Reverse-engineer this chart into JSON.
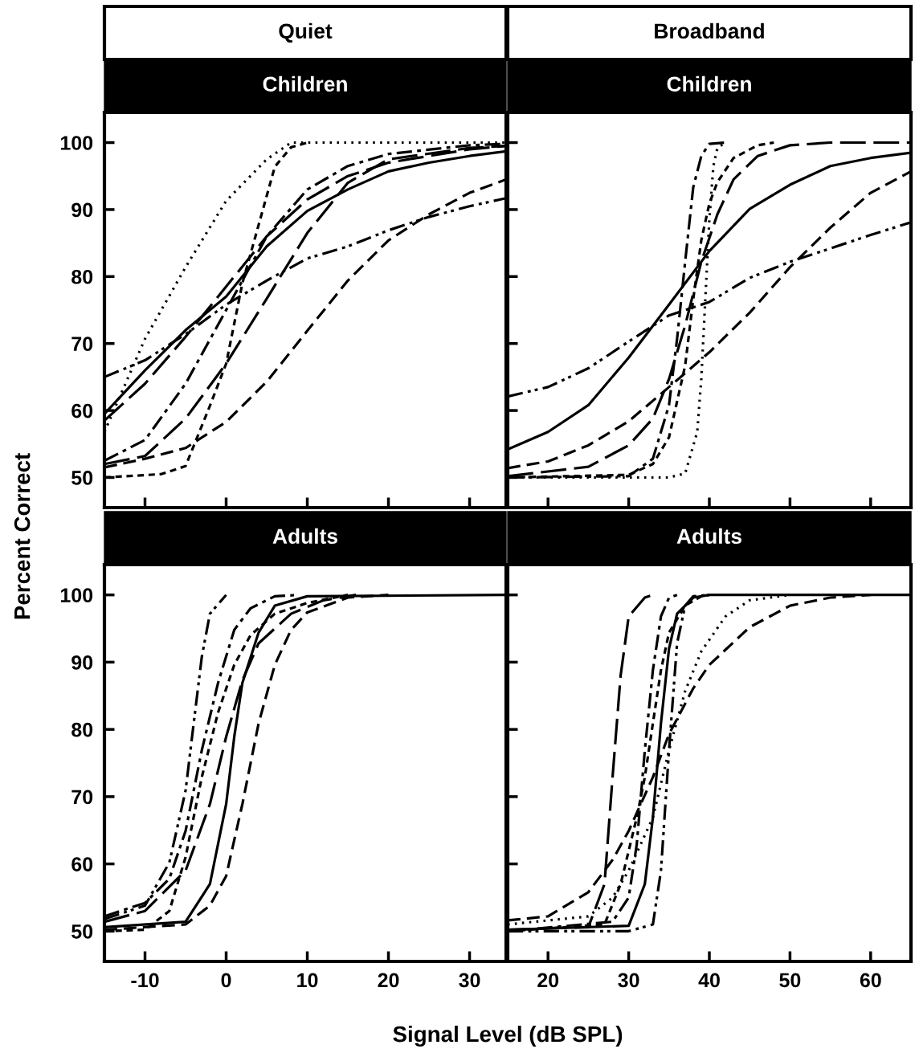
{
  "chart_data": [
    {
      "type": "line",
      "title": "Children",
      "subtitle": "Quiet",
      "ylabel": "Percent Correct",
      "xlim": [
        -15,
        34.5
      ],
      "ylim": [
        45.5,
        104.5
      ],
      "xticks": [
        -10,
        0,
        10,
        20,
        30
      ],
      "yticks": [
        50,
        60,
        70,
        80,
        90,
        100
      ],
      "tick_labels": "y",
      "series": [
        {
          "color": "#000000",
          "line_style": "dashdotdot",
          "x": [
            -15,
            -10,
            -5,
            0,
            5,
            10,
            15,
            20,
            25,
            30,
            34.5
          ],
          "values": [
            65,
            67.5,
            71.4,
            75.8,
            79.4,
            82.7,
            84.5,
            86.9,
            88.9,
            90.5,
            91.7
          ]
        },
        {
          "color": "#000000",
          "line_style": "solid",
          "x": [
            -15,
            -10,
            -5,
            0,
            5,
            10,
            15,
            20,
            25,
            30,
            34.5
          ],
          "values": [
            59.5,
            66,
            72,
            77,
            84.5,
            89.8,
            93,
            95.7,
            97,
            98,
            98.7
          ]
        },
        {
          "color": "#000000",
          "line_style": "longdash",
          "x": [
            -15,
            -10,
            -5,
            0,
            5,
            10,
            15,
            20,
            30,
            34.5
          ],
          "values": [
            58.5,
            64,
            71,
            78.5,
            86,
            91.5,
            95,
            97,
            99,
            99.5
          ]
        },
        {
          "color": "#000000",
          "line_style": "dotted",
          "x": [
            -15,
            -10,
            -5,
            0,
            5,
            8,
            34.5
          ],
          "values": [
            56.8,
            70.7,
            81.4,
            91.3,
            97.5,
            100,
            100
          ]
        },
        {
          "color": "#000000",
          "line_style": "dashdot",
          "x": [
            -15,
            -10,
            -5,
            0,
            5,
            10,
            15,
            20,
            30,
            34.5
          ],
          "values": [
            52.5,
            55.6,
            64,
            75,
            86,
            93,
            96.5,
            98.3,
            99.6,
            99.8
          ]
        },
        {
          "color": "#000000",
          "line_style": "longdash",
          "x": [
            -15,
            -10,
            -5,
            0,
            5,
            10,
            15,
            20,
            30,
            34.5
          ],
          "values": [
            52,
            53.2,
            58.8,
            67,
            76.7,
            86.5,
            94,
            97.5,
            99.2,
            99.5
          ]
        },
        {
          "color": "#000000",
          "line_style": "dashed",
          "x": [
            -15,
            -10,
            -5,
            0,
            5,
            10,
            15,
            20,
            25,
            30,
            34.5
          ],
          "values": [
            51.5,
            52.8,
            54.4,
            58.3,
            64.3,
            71.9,
            79.4,
            85.4,
            89.3,
            92.5,
            94.5
          ]
        },
        {
          "color": "#000000",
          "line_style": "shortdash",
          "x": [
            -15,
            -8,
            -5,
            -2,
            0,
            2,
            4,
            6,
            8,
            10
          ],
          "values": [
            50,
            50.5,
            51.7,
            60.7,
            67,
            79,
            87.7,
            96.4,
            99.3,
            100
          ]
        }
      ]
    },
    {
      "type": "line",
      "title": "Children",
      "subtitle": "Broadband",
      "xlim": [
        15,
        65
      ],
      "ylim": [
        45.5,
        104.5
      ],
      "xticks": [
        20,
        30,
        40,
        50,
        60
      ],
      "yticks": [
        50,
        60,
        70,
        80,
        90,
        100
      ],
      "tick_labels": false,
      "series": [
        {
          "color": "#000000",
          "line_style": "solid",
          "x": [
            15,
            20,
            25,
            30,
            35,
            40,
            45,
            50,
            55,
            60,
            65
          ],
          "values": [
            54.2,
            56.8,
            60.8,
            67.9,
            75.8,
            83.8,
            90.1,
            93.7,
            96.5,
            97.7,
            98.5
          ]
        },
        {
          "color": "#000000",
          "line_style": "dashdotdot",
          "x": [
            15,
            20,
            25,
            30,
            35,
            40,
            45,
            50,
            55,
            60,
            65
          ],
          "values": [
            62.1,
            63.5,
            66.3,
            70.3,
            74.2,
            76.2,
            79.8,
            82.2,
            84.2,
            86.2,
            88.1
          ]
        },
        {
          "color": "#000000",
          "line_style": "dashed",
          "x": [
            15,
            20,
            25,
            30,
            35,
            40,
            45,
            50,
            55,
            60,
            65
          ],
          "values": [
            51.4,
            52.4,
            54.8,
            58.4,
            63.5,
            68.7,
            74.6,
            81.4,
            87.3,
            92.5,
            95.7
          ]
        },
        {
          "color": "#000000",
          "line_style": "longdash",
          "x": [
            15,
            25,
            30,
            33,
            35,
            37,
            39,
            41,
            43,
            46,
            50,
            55,
            65
          ],
          "values": [
            50.2,
            51.6,
            54.8,
            58.8,
            64.7,
            72.7,
            82.2,
            89.3,
            94.5,
            98,
            99.6,
            100,
            100
          ]
        },
        {
          "color": "#000000",
          "line_style": "dashdot",
          "x": [
            15,
            30,
            33,
            35,
            36,
            37,
            38,
            39,
            40,
            42
          ],
          "values": [
            50,
            50.2,
            52.8,
            60.8,
            70.7,
            82.2,
            93.3,
            98,
            99.8,
            100
          ]
        },
        {
          "color": "#000000",
          "line_style": "shortdash",
          "x": [
            15,
            30,
            33,
            35,
            37,
            38,
            39,
            40,
            41,
            43,
            46,
            48
          ],
          "values": [
            50,
            50.4,
            52,
            56,
            66.7,
            76.6,
            85.4,
            90.9,
            94.1,
            97.7,
            99.6,
            100
          ]
        },
        {
          "color": "#000000",
          "line_style": "dotted",
          "x": [
            15,
            35,
            37,
            38.5,
            39,
            39.5,
            40,
            40.5,
            41,
            42
          ],
          "values": [
            50,
            50,
            50.6,
            56.8,
            64.7,
            76.6,
            88.5,
            96.5,
            99.2,
            100
          ]
        }
      ]
    },
    {
      "type": "line",
      "title": "Adults",
      "xlabel": "Signal Level (dB SPL)",
      "xlim": [
        -15,
        34.5
      ],
      "ylim": [
        45.5,
        104.5
      ],
      "xticks": [
        -10,
        0,
        10,
        20,
        30
      ],
      "yticks": [
        50,
        60,
        70,
        80,
        90,
        100
      ],
      "series": [
        {
          "color": "#000000",
          "line_style": "solid",
          "x": [
            -15,
            -5,
            -2,
            0,
            1,
            2,
            4,
            6,
            10,
            34.5
          ],
          "values": [
            50.6,
            51.4,
            57,
            68.9,
            78.9,
            86.9,
            94.4,
            98.4,
            99.8,
            100
          ]
        },
        {
          "color": "#000000",
          "line_style": "dashed",
          "x": [
            -15,
            -5,
            -2,
            0,
            2,
            4,
            6,
            8,
            10,
            15,
            20
          ],
          "values": [
            50.2,
            51,
            53.8,
            58.2,
            68.9,
            80.9,
            89.6,
            94.8,
            97.4,
            99.6,
            100
          ]
        },
        {
          "color": "#000000",
          "line_style": "dashdotdot",
          "x": [
            -15,
            -10,
            -7,
            -5,
            -4,
            -3,
            -2,
            0
          ],
          "values": [
            51.8,
            53.8,
            60.2,
            70.9,
            80.9,
            90.8,
            97.2,
            100
          ]
        },
        {
          "color": "#000000",
          "line_style": "dashdot",
          "x": [
            -15,
            -10,
            -7,
            -5,
            -3,
            -1,
            1,
            3,
            6,
            9
          ],
          "values": [
            52.2,
            54.2,
            57.8,
            64.9,
            76.9,
            86.9,
            94.8,
            98,
            99.8,
            100
          ]
        },
        {
          "color": "#000000",
          "line_style": "longdash",
          "x": [
            -15,
            -10,
            -5,
            -2,
            0,
            2,
            4,
            8,
            12,
            16
          ],
          "values": [
            51.4,
            53,
            59,
            68.9,
            78.9,
            87.3,
            92.8,
            97.2,
            99.2,
            100
          ]
        },
        {
          "color": "#000000",
          "line_style": "shortdash",
          "x": [
            -15,
            -10,
            -7,
            -5,
            -3,
            -1,
            1,
            3,
            6,
            10,
            15
          ],
          "values": [
            50,
            50.2,
            53,
            61,
            72.9,
            82.5,
            89.6,
            94,
            97.2,
            98.8,
            100
          ]
        }
      ]
    },
    {
      "type": "line",
      "title": "Adults",
      "xlim": [
        15,
        65
      ],
      "ylim": [
        45.5,
        104.5
      ],
      "xticks": [
        20,
        30,
        40,
        50,
        60
      ],
      "yticks": [
        50,
        60,
        70,
        80,
        90,
        100
      ],
      "tick_labels": "x",
      "series": [
        {
          "color": "#000000",
          "line_style": "dashed",
          "x": [
            15,
            20,
            25,
            28,
            30,
            33,
            35,
            38,
            40,
            45,
            50,
            55,
            60
          ],
          "values": [
            51.6,
            52.2,
            55.8,
            60.6,
            64.9,
            72.9,
            79.3,
            86.1,
            89.6,
            95.2,
            98.4,
            99.6,
            100
          ]
        },
        {
          "color": "#000000",
          "line_style": "longdash",
          "x": [
            15,
            25,
            27,
            28,
            29,
            30,
            32,
            33
          ],
          "values": [
            50.2,
            50.6,
            57,
            72.9,
            88,
            96.8,
            99.6,
            100
          ]
        },
        {
          "color": "#000000",
          "line_style": "dotted",
          "x": [
            15,
            25,
            28,
            30,
            33,
            35,
            37,
            39,
            42,
            45,
            50
          ],
          "values": [
            51,
            52.2,
            55,
            59,
            66.9,
            76.9,
            85.7,
            91.6,
            96.8,
            99.2,
            100
          ]
        },
        {
          "color": "#000000",
          "line_style": "dashdot",
          "x": [
            15,
            28,
            30,
            31,
            32,
            33,
            34,
            35,
            36
          ],
          "values": [
            50,
            51.4,
            55,
            62.9,
            76.9,
            88.8,
            96.8,
            99.6,
            100
          ]
        },
        {
          "color": "#000000",
          "line_style": "shortdash",
          "x": [
            15,
            27,
            29,
            31,
            32,
            33,
            34,
            35,
            37,
            39,
            40
          ],
          "values": [
            50,
            51,
            57,
            66.9,
            72.9,
            80.9,
            88.8,
            94.4,
            98.4,
            99.8,
            100
          ]
        },
        {
          "color": "#000000",
          "line_style": "solid",
          "x": [
            15,
            30,
            32,
            33,
            34,
            35,
            36,
            38,
            40,
            65
          ],
          "values": [
            50.2,
            50.8,
            57,
            66.9,
            80.9,
            92,
            97.2,
            99.6,
            100,
            100
          ]
        },
        {
          "color": "#000000",
          "line_style": "dashdotdot",
          "x": [
            15,
            30,
            33,
            34,
            35,
            36,
            37,
            38,
            40
          ],
          "values": [
            50,
            50,
            51,
            59,
            76.9,
            92.8,
            98.4,
            99.8,
            100
          ]
        }
      ]
    }
  ]
}
